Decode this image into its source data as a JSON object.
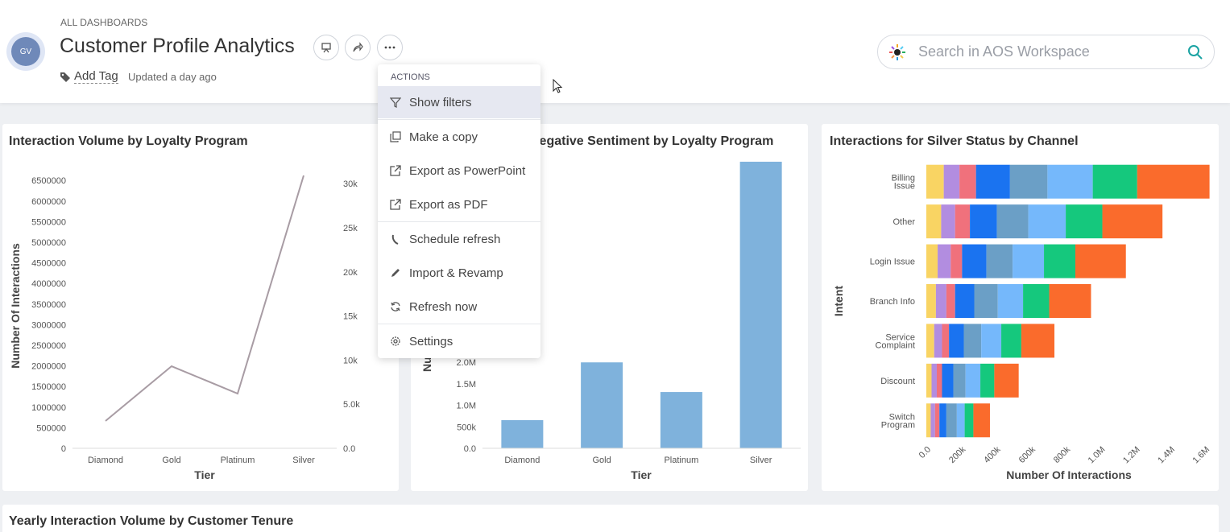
{
  "header": {
    "breadcrumb": "ALL DASHBOARDS",
    "avatar": "GV",
    "title": "Customer Profile Analytics",
    "add_tag": "Add Tag",
    "updated": "Updated a day ago",
    "search_placeholder": "Search in AOS Workspace"
  },
  "menu": {
    "heading": "ACTIONS",
    "items": [
      "Show filters",
      "Make a copy",
      "Export as PowerPoint",
      "Export as PDF",
      "Schedule refresh",
      "Import & Revamp",
      "Refresh now",
      "Settings"
    ]
  },
  "chart_data": [
    {
      "type": "line",
      "title": "Interaction Volume by Loyalty Program",
      "x_label": "Tier",
      "y_label": "Number Of Interactions",
      "categories": [
        "Diamond",
        "Gold",
        "Platinum",
        "Silver"
      ],
      "series": [
        {
          "color": "#a89ca4",
          "values": [
            664000,
            1992000,
            1328000,
            6620000
          ]
        }
      ],
      "ylim": [
        0,
        6700000
      ],
      "yticks": [
        0,
        500000,
        1000000,
        1500000,
        2000000,
        2500000,
        3000000,
        3500000,
        4000000,
        4500000,
        5000000,
        5500000,
        6000000,
        6500000
      ],
      "y2lim": [
        0,
        31300
      ],
      "y2ticks": [
        {
          "value": 0,
          "label": "0.0"
        },
        {
          "value": 5000,
          "label": "5.0k"
        },
        {
          "value": 10000,
          "label": "10k"
        },
        {
          "value": 15000,
          "label": "15k"
        },
        {
          "value": 20000,
          "label": "20k"
        },
        {
          "value": 25000,
          "label": "25k"
        },
        {
          "value": 30000,
          "label": "30k"
        }
      ]
    },
    {
      "type": "bar",
      "title": "Negative Sentiment by Loyalty Program",
      "x_label": "Tier",
      "y_label": "Number Of Interactions",
      "categories": [
        "Diamond",
        "Gold",
        "Platinum",
        "Silver"
      ],
      "values": [
        655000,
        2000000,
        1310000,
        6670000
      ],
      "color": "#7fb2dc",
      "ylim": [
        0,
        6800000
      ],
      "yticks": [
        {
          "value": 0,
          "label": "0.0"
        },
        {
          "value": 500000,
          "label": "500k"
        },
        {
          "value": 1000000,
          "label": "1.0M"
        },
        {
          "value": 1500000,
          "label": "1.5M"
        },
        {
          "value": 2000000,
          "label": "2.0M"
        }
      ]
    },
    {
      "type": "barh",
      "title": "Interactions for Silver Status by Channel",
      "x_label": "Number Of Interactions",
      "y_label": "Intent",
      "categories": [
        "Billing Issue",
        "Other",
        "Login Issue",
        "Branch Info",
        "Service Complaint",
        "Discount",
        "Switch Program"
      ],
      "series": [
        {
          "color": "#f9d463",
          "values": [
            100000,
            85000,
            65000,
            55000,
            45000,
            30000,
            25000
          ]
        },
        {
          "color": "#b28de0",
          "values": [
            90000,
            80000,
            75000,
            60000,
            45000,
            30000,
            25000
          ]
        },
        {
          "color": "#f0717c",
          "values": [
            95000,
            85000,
            65000,
            50000,
            40000,
            30000,
            25000
          ]
        },
        {
          "color": "#1a73f0",
          "values": [
            195000,
            155000,
            140000,
            110000,
            85000,
            65000,
            40000
          ]
        },
        {
          "color": "#6b9fc6",
          "values": [
            215000,
            180000,
            150000,
            135000,
            100000,
            70000,
            60000
          ]
        },
        {
          "color": "#75b8fb",
          "values": [
            260000,
            215000,
            180000,
            145000,
            115000,
            85000,
            45000
          ]
        },
        {
          "color": "#15c87d",
          "values": [
            255000,
            210000,
            180000,
            150000,
            115000,
            80000,
            50000
          ]
        },
        {
          "color": "#fa6b2c",
          "values": [
            415000,
            345000,
            290000,
            240000,
            190000,
            140000,
            95000
          ]
        }
      ],
      "xlim": [
        0,
        1650000
      ],
      "xticks": [
        {
          "value": 0,
          "label": "0.0"
        },
        {
          "value": 200000,
          "label": "200k"
        },
        {
          "value": 400000,
          "label": "400k"
        },
        {
          "value": 600000,
          "label": "600k"
        },
        {
          "value": 800000,
          "label": "800k"
        },
        {
          "value": 1000000,
          "label": "1.0M"
        },
        {
          "value": 1200000,
          "label": "1.2M"
        },
        {
          "value": 1400000,
          "label": "1.4M"
        },
        {
          "value": 1600000,
          "label": "1.6M"
        }
      ]
    }
  ],
  "bottom_card": {
    "title": "Yearly Interaction Volume by Customer Tenure"
  }
}
